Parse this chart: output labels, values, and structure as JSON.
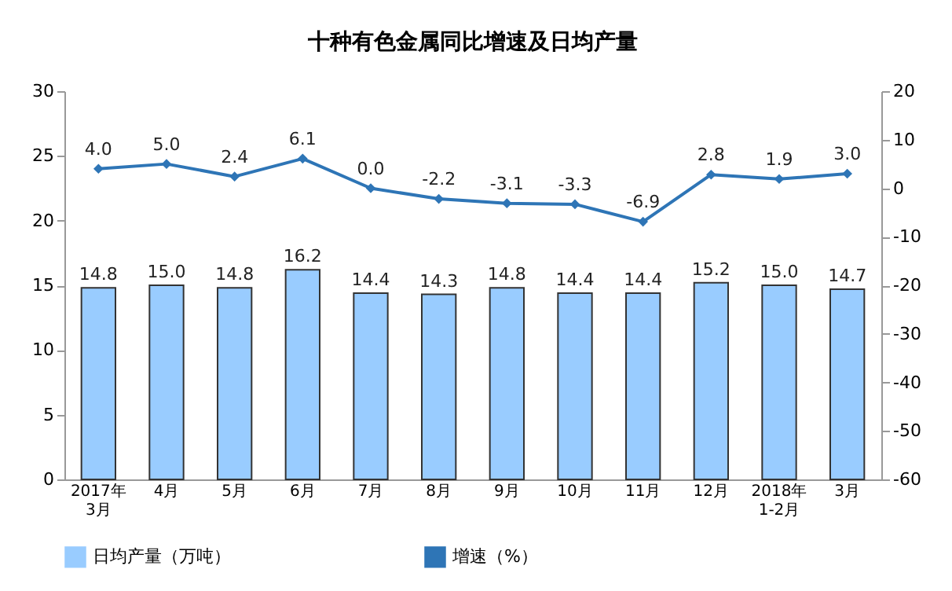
{
  "chart_data": {
    "type": "bar",
    "title": "十种有色金属同比增速及日均产量",
    "categories": [
      "2017年\n3月",
      "4月",
      "5月",
      "6月",
      "7月",
      "8月",
      "9月",
      "10月",
      "11月",
      "12月",
      "2018年\n1-2月",
      "3月"
    ],
    "series": [
      {
        "name": "日均产量（万吨）",
        "color": "#99ccff",
        "values": [
          14.8,
          15.0,
          14.8,
          16.2,
          14.4,
          14.3,
          14.8,
          14.4,
          14.4,
          15.2,
          15.0,
          14.7
        ],
        "value_labels": [
          "14.8",
          "15.0",
          "14.8",
          "16.2",
          "14.4",
          "14.3",
          "14.8",
          "14.4",
          "14.4",
          "15.2",
          "15.0",
          "14.7"
        ]
      },
      {
        "name": "增速（%）",
        "type": "line",
        "axis": "y2",
        "color": "#2e75b6",
        "marker": "diamond",
        "line_style": "solid",
        "values": [
          4.0,
          5.0,
          2.4,
          6.1,
          0.0,
          -2.2,
          -3.1,
          -3.3,
          -6.9,
          2.8,
          1.9,
          3.0
        ],
        "value_labels": [
          "4.0",
          "5.0",
          "2.4",
          "6.1",
          "0.0",
          "-2.2",
          "-3.1",
          "-3.3",
          "-6.9",
          "2.8",
          "1.9",
          "3.0"
        ]
      }
    ],
    "ylim": [
      0,
      30
    ],
    "yticks": [
      0,
      5,
      10,
      15,
      20,
      25,
      30
    ],
    "y2lim": [
      -60,
      20
    ],
    "y2ticks": [
      -60,
      -50,
      -40,
      -30,
      -20,
      -10,
      0,
      10,
      20
    ],
    "legend": "bottom",
    "grid": false
  }
}
